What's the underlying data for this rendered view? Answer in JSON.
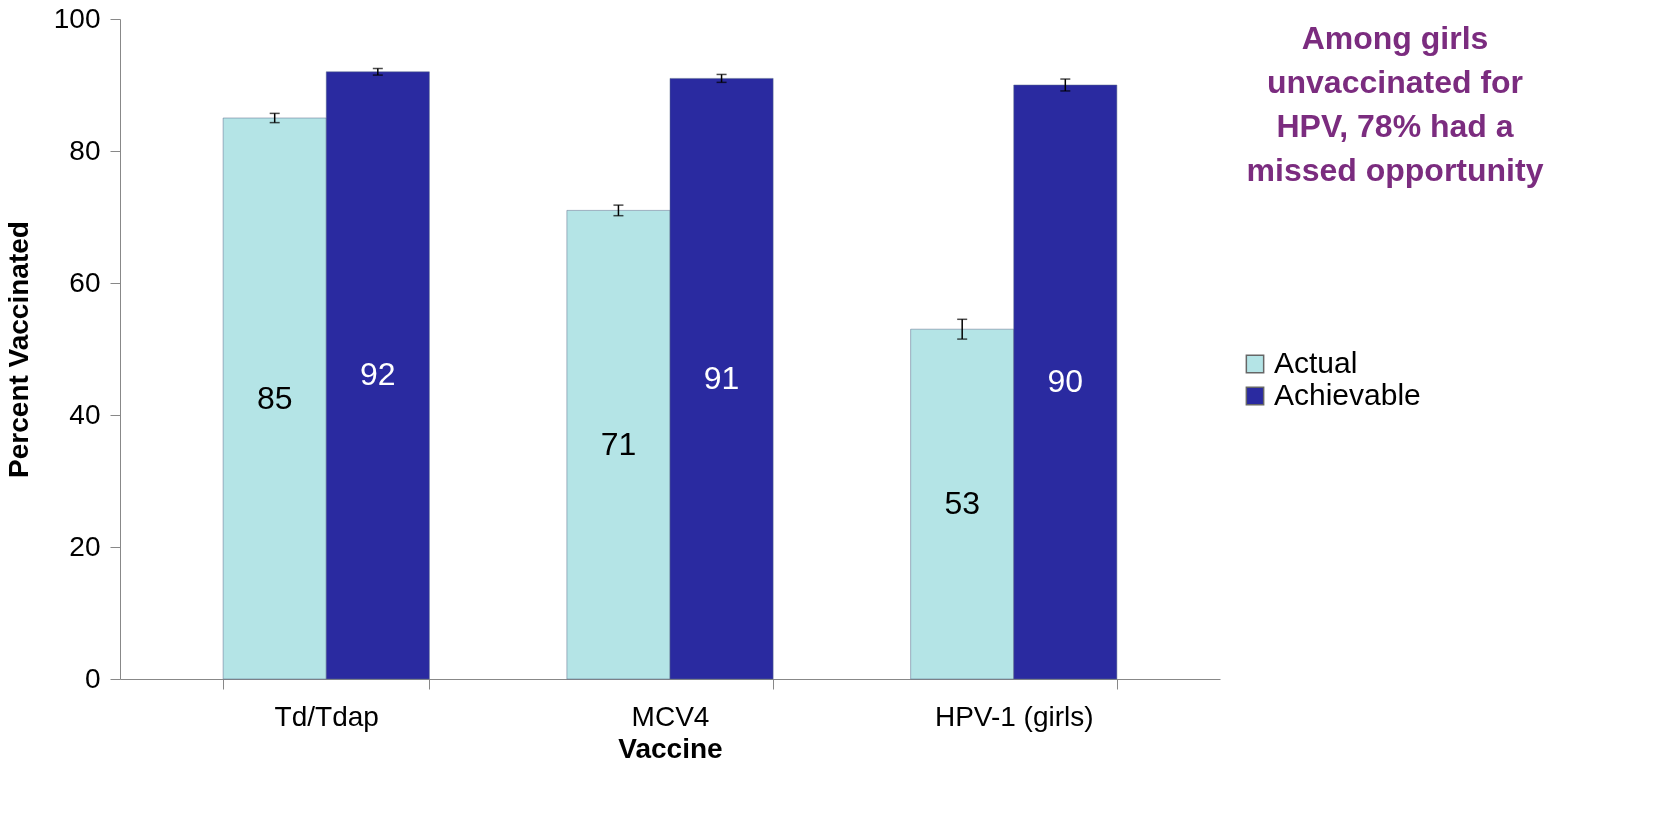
{
  "chart_data": {
    "type": "bar",
    "xlabel": "Vaccine",
    "ylabel": "Percent  Vaccinated",
    "categories": [
      "Td/Tdap",
      "MCV4",
      "HPV-1 (girls)"
    ],
    "series": [
      {
        "name": "Actual",
        "color": "#b4e4e6",
        "values": [
          85,
          71,
          53
        ],
        "errors": [
          0.7,
          0.8,
          1.5
        ]
      },
      {
        "name": "Achievable",
        "color": "#2a2aa0",
        "values": [
          92,
          91,
          90
        ],
        "errors": [
          0.5,
          0.6,
          0.9
        ]
      }
    ],
    "ylim": [
      0,
      100
    ],
    "yticks": [
      0,
      20,
      40,
      60,
      80,
      100
    ],
    "grid": false,
    "legend": "right",
    "data_labels": true,
    "annotations": [
      "Among girls unvaccinated for HPV, 78% had a missed opportunity"
    ]
  }
}
